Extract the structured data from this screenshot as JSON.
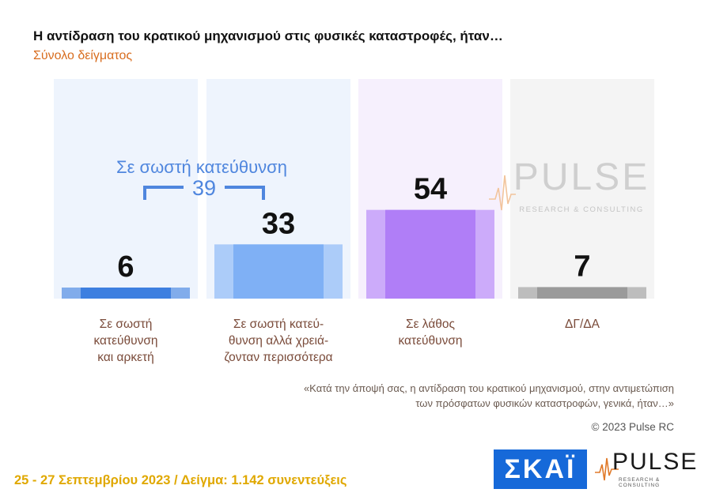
{
  "title": "Η αντίδραση του κρατικού μηχανισμού στις φυσικές καταστροφές, ήταν…",
  "subtitle": "Σύνολο δείγματος",
  "chart_data": {
    "type": "bar",
    "categories": [
      "Σε σωστή κατεύθυνση και αρκετή",
      "Σε σωστή κατεύ-θυνση αλλά χρειά-ζονταν περισσότερα",
      "Σε λάθος κατεύθυνση",
      "ΔΓ/ΔΑ"
    ],
    "label_lines": [
      [
        "Σε σωστή",
        "κατεύθυνση",
        "και αρκετή"
      ],
      [
        "Σε σωστή κατεύ-",
        "θυνση αλλά χρειά-",
        "ζονταν περισσότερα"
      ],
      [
        "Σε λάθος",
        "κατεύθυνση"
      ],
      [
        "ΔΓ/ΔΑ"
      ]
    ],
    "values": [
      6,
      33,
      54,
      7
    ],
    "colors": [
      "#3d7fe0",
      "#7fb0f5",
      "#b07ef7",
      "#9a9a9a"
    ],
    "panel_colors": [
      "#eef4fd",
      "#eef4fd",
      "#f6f0fd",
      "#f4f4f4"
    ],
    "ylim": [
      0,
      100
    ],
    "group_annotation": {
      "label": "Σε σωστή κατεύθυνση",
      "value": "39",
      "color": "#4f86de"
    }
  },
  "watermark": {
    "word": "PULSE",
    "tagline": "RESEARCH & CONSULTING"
  },
  "question": "«Κατά την άποψή σας, η αντίδραση του κρατικού μηχανισμού, στην αντιμετώπιση των πρόσφατων φυσικών καταστροφών, γενικά, ήταν…»",
  "copyright": "© 2023 Pulse RC",
  "footer": "25 - 27 Σεπτεμβρίου 2023 / Δείγμα: 1.142 συνεντεύξεις",
  "logos": {
    "skai": "ΣΚΑΪ",
    "pulse_word": "PULSE",
    "pulse_tagline": "RESEARCH & CONSULTING"
  }
}
